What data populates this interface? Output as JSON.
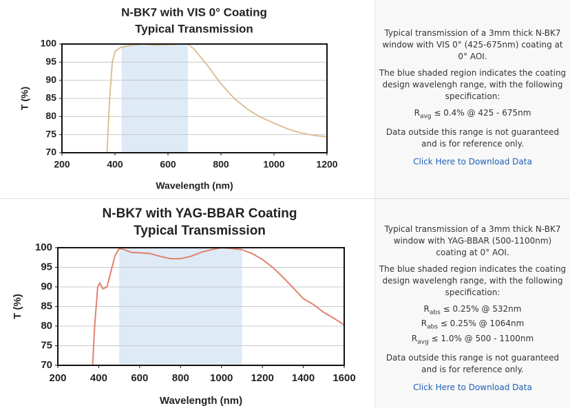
{
  "chart_data": [
    {
      "type": "line",
      "title": [
        "N-BK7 with VIS 0° Coating",
        "Typical Transmission"
      ],
      "x_label": "Wavelength (nm)",
      "y_label": "T (%)",
      "x": [
        370,
        380,
        390,
        400,
        420,
        450,
        500,
        550,
        600,
        650,
        675,
        700,
        750,
        800,
        850,
        900,
        950,
        1000,
        1050,
        1100,
        1150,
        1200
      ],
      "series": [
        {
          "color": "#dcc096",
          "values": [
            70,
            85,
            95,
            98,
            99,
            99.5,
            100,
            99.7,
            99.8,
            100,
            100,
            98.5,
            94,
            89,
            85,
            82,
            79.8,
            78.2,
            76.6,
            75.5,
            74.8,
            74.4
          ]
        }
      ],
      "xlim": [
        200,
        1200
      ],
      "xticks": [
        200,
        400,
        600,
        800,
        1000,
        1200
      ],
      "ylim": [
        70,
        100
      ],
      "yticks": [
        70,
        75,
        80,
        85,
        90,
        95,
        100
      ],
      "shaded_range": [
        425,
        675
      ],
      "shade_color": "#deeaf6",
      "grid": true
    },
    {
      "type": "line",
      "title": [
        "N-BK7 with YAG-BBAR Coating",
        "Typical Transmission"
      ],
      "x_label": "Wavelength (nm)",
      "y_label": "T (%)",
      "x": [
        370,
        380,
        395,
        405,
        420,
        440,
        460,
        480,
        500,
        520,
        560,
        600,
        650,
        700,
        750,
        800,
        850,
        900,
        950,
        1000,
        1050,
        1100,
        1150,
        1200,
        1250,
        1300,
        1350,
        1400,
        1450,
        1500,
        1550,
        1600
      ],
      "series": [
        {
          "color": "#e2806e",
          "values": [
            70,
            80,
            90,
            91,
            89.5,
            90,
            94,
            98,
            99.8,
            99.6,
            98.8,
            98.7,
            98.5,
            97.8,
            97.2,
            97.2,
            97.8,
            98.8,
            99.5,
            100,
            99.8,
            99.5,
            98.5,
            97,
            95,
            92.5,
            89.8,
            87,
            85.5,
            83.5,
            82,
            80.3
          ]
        }
      ],
      "xlim": [
        200,
        1600
      ],
      "xticks": [
        200,
        400,
        600,
        800,
        1000,
        1200,
        1400,
        1600
      ],
      "ylim": [
        70,
        100
      ],
      "yticks": [
        70,
        75,
        80,
        85,
        90,
        95,
        100
      ],
      "shaded_range": [
        500,
        1100
      ],
      "shade_color": "#deeaf6",
      "grid": true
    }
  ],
  "panels": [
    {
      "description": "Typical transmission of a 3mm thick N-BK7 window with VIS 0° (425-675nm) coating at 0° AOI.",
      "note": "The blue shaded region indicates the coating design wavelengh range, with the following specification:",
      "specs": [
        {
          "symbol": "R",
          "subscript": "avg",
          "text": "≤ 0.4% @ 425 - 675nm"
        }
      ],
      "disclaimer": "Data outside this range is not guaranteed and is for reference only.",
      "link": "Click Here to Download Data"
    },
    {
      "description": "Typical transmission of a 3mm thick N-BK7 window with YAG-BBAR (500-1100nm) coating at 0° AOI.",
      "note": "The blue shaded region indicates the coating design wavelengh range, with the following specification:",
      "specs": [
        {
          "symbol": "R",
          "subscript": "abs",
          "text": "≤ 0.25% @ 532nm"
        },
        {
          "symbol": "R",
          "subscript": "abs",
          "text": "≤ 0.25% @ 1064nm"
        },
        {
          "symbol": "R",
          "subscript": "avg",
          "text": "≤ 1.0% @ 500 - 1100nm"
        }
      ],
      "disclaimer": "Data outside this range is not guaranteed and is for reference only.",
      "link": "Click Here to Download Data"
    }
  ]
}
